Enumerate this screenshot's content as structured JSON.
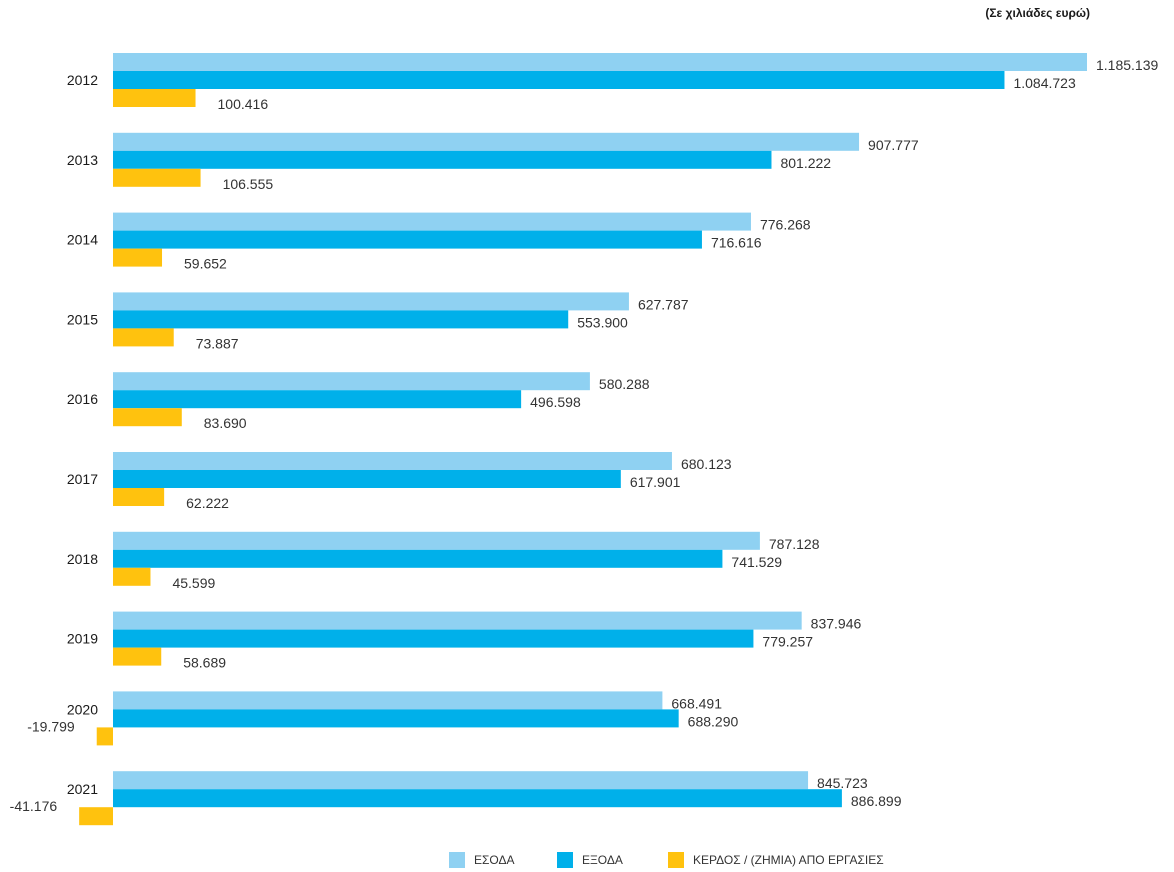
{
  "chart_data": {
    "type": "bar",
    "orientation": "horizontal",
    "unit_note": "(Σε χιλιάδες ευρώ)",
    "categories": [
      "2012",
      "2013",
      "2014",
      "2015",
      "2016",
      "2017",
      "2018",
      "2019",
      "2020",
      "2021"
    ],
    "series": [
      {
        "name": "ΕΣΟΔΑ",
        "color": "#8fd1f2",
        "values": [
          1185139,
          907777,
          776268,
          627787,
          580288,
          680123,
          787128,
          837946,
          668491,
          845723
        ],
        "labels": [
          "1.185.139",
          "907.777",
          "776.268",
          "627.787",
          "580.288",
          "680.123",
          "787.128",
          "837.946",
          "668.491",
          "845.723"
        ]
      },
      {
        "name": "ΕΞΟΔΑ",
        "color": "#00b0ea",
        "values": [
          1084723,
          801222,
          716616,
          553900,
          496598,
          617901,
          741529,
          779257,
          688290,
          886899
        ],
        "labels": [
          "1.084.723",
          "801.222",
          "716.616",
          "553.900",
          "496.598",
          "617.901",
          "741.529",
          "779.257",
          "688.290",
          "886.899"
        ]
      },
      {
        "name": "ΚΕΡΔΟΣ / (ΖΗΜΙΑ) ΑΠΟ ΕΡΓΑΣΙΕΣ",
        "color": "#ffc20e",
        "values": [
          100416,
          106555,
          59652,
          73887,
          83690,
          62222,
          45599,
          58689,
          -19799,
          -41176
        ],
        "labels": [
          "100.416",
          "106.555",
          "59.652",
          "73.887",
          "83.690",
          "62.222",
          "45.599",
          "58.689",
          "-19.799",
          "-41.176"
        ]
      }
    ],
    "legend_position": "bottom-center",
    "grid": false
  }
}
